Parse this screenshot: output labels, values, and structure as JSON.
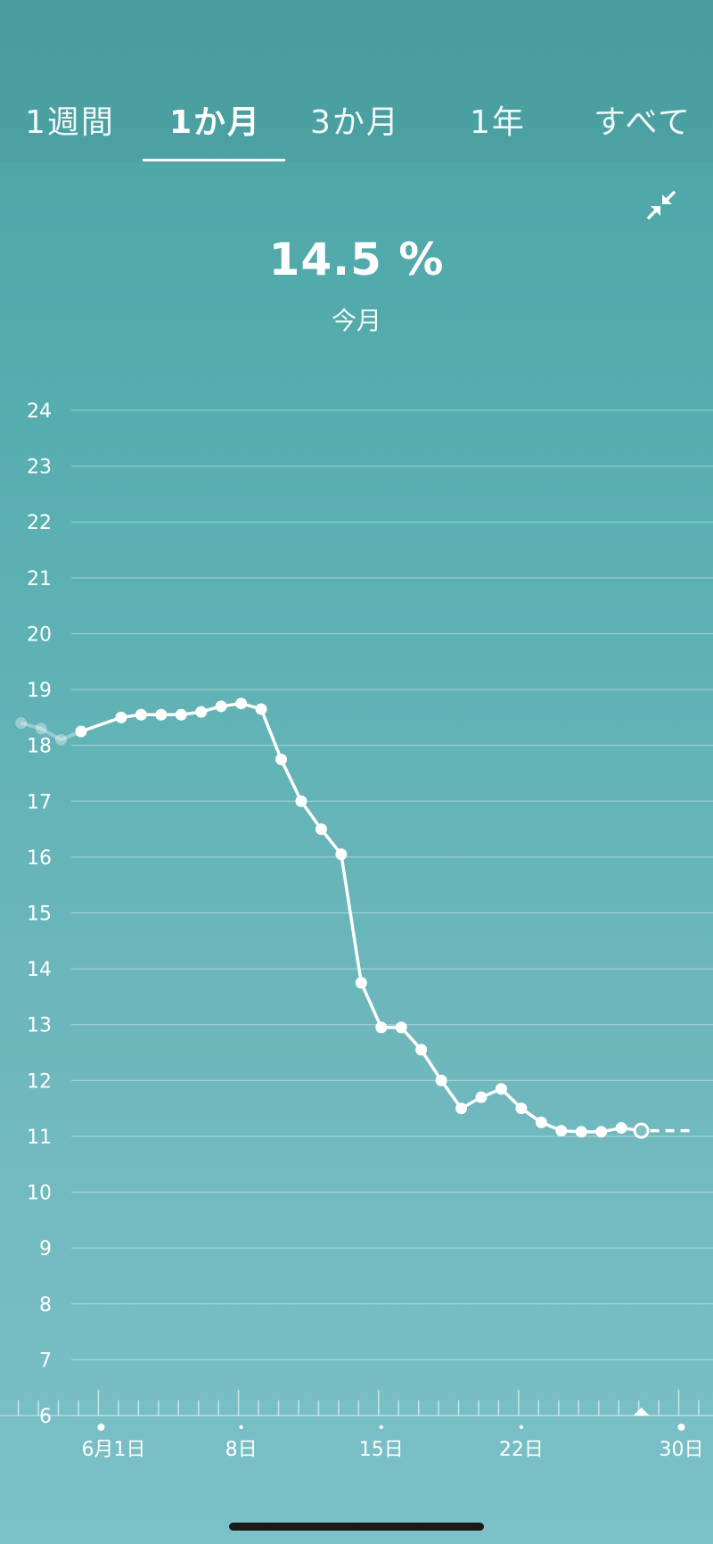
{
  "tabs": [
    {
      "label": "1週間",
      "active": false
    },
    {
      "label": "1か月",
      "active": true
    },
    {
      "label": "3か月",
      "active": false
    },
    {
      "label": "1年",
      "active": false
    },
    {
      "label": "すべて",
      "active": false
    }
  ],
  "summary": {
    "value": "14.5 %",
    "period": "今月"
  },
  "icons": {
    "collapse": "collapse-arrows-icon"
  },
  "colors": {
    "line": "#ffffff",
    "background_top": "#4aa3a4",
    "background_bottom": "#7cc0c8"
  },
  "chart_data": {
    "type": "line",
    "y_ticks": [
      6,
      7,
      8,
      9,
      10,
      11,
      12,
      13,
      14,
      15,
      16,
      17,
      18,
      19,
      20,
      21,
      22,
      23,
      24
    ],
    "ylim": [
      6,
      24
    ],
    "x_tick_labels": [
      "6月1日",
      "8日",
      "15日",
      "22日",
      "30日"
    ],
    "grid": true,
    "series": [
      {
        "faded_prior_points": [
          {
            "x": "5月28日",
            "y": 18.4
          },
          {
            "x": "5月29日",
            "y": 18.3
          },
          {
            "x": "5月30日",
            "y": 18.1
          }
        ],
        "points": [
          {
            "x": "5月31日",
            "y": 18.25
          },
          {
            "x": "6月2日",
            "y": 18.5
          },
          {
            "x": "6月3日",
            "y": 18.55
          },
          {
            "x": "6月4日",
            "y": 18.55
          },
          {
            "x": "6月5日",
            "y": 18.55
          },
          {
            "x": "6月6日",
            "y": 18.6
          },
          {
            "x": "6月7日",
            "y": 18.7
          },
          {
            "x": "6月8日",
            "y": 18.75
          },
          {
            "x": "6月9日",
            "y": 18.65
          },
          {
            "x": "6月10日",
            "y": 17.75
          },
          {
            "x": "6月11日",
            "y": 17.0
          },
          {
            "x": "6月12日",
            "y": 16.5
          },
          {
            "x": "6月13日",
            "y": 16.05
          },
          {
            "x": "6月14日",
            "y": 13.75
          },
          {
            "x": "6月15日",
            "y": 12.95
          },
          {
            "x": "6月16日",
            "y": 12.95
          },
          {
            "x": "6月17日",
            "y": 12.55
          },
          {
            "x": "6月18日",
            "y": 12.0
          },
          {
            "x": "6月19日",
            "y": 11.5
          },
          {
            "x": "6月20日",
            "y": 11.7
          },
          {
            "x": "6月21日",
            "y": 11.85
          },
          {
            "x": "6月22日",
            "y": 11.5
          },
          {
            "x": "6月23日",
            "y": 11.25
          },
          {
            "x": "6月24日",
            "y": 11.1
          },
          {
            "x": "6月25日",
            "y": 11.08
          },
          {
            "x": "6月26日",
            "y": 11.08
          },
          {
            "x": "6月27日",
            "y": 11.15
          },
          {
            "x": "6月28日",
            "y": 11.1
          }
        ],
        "projection": {
          "from_x": "6月28日",
          "to_x": "6月30日",
          "y": 11.1
        }
      }
    ]
  }
}
